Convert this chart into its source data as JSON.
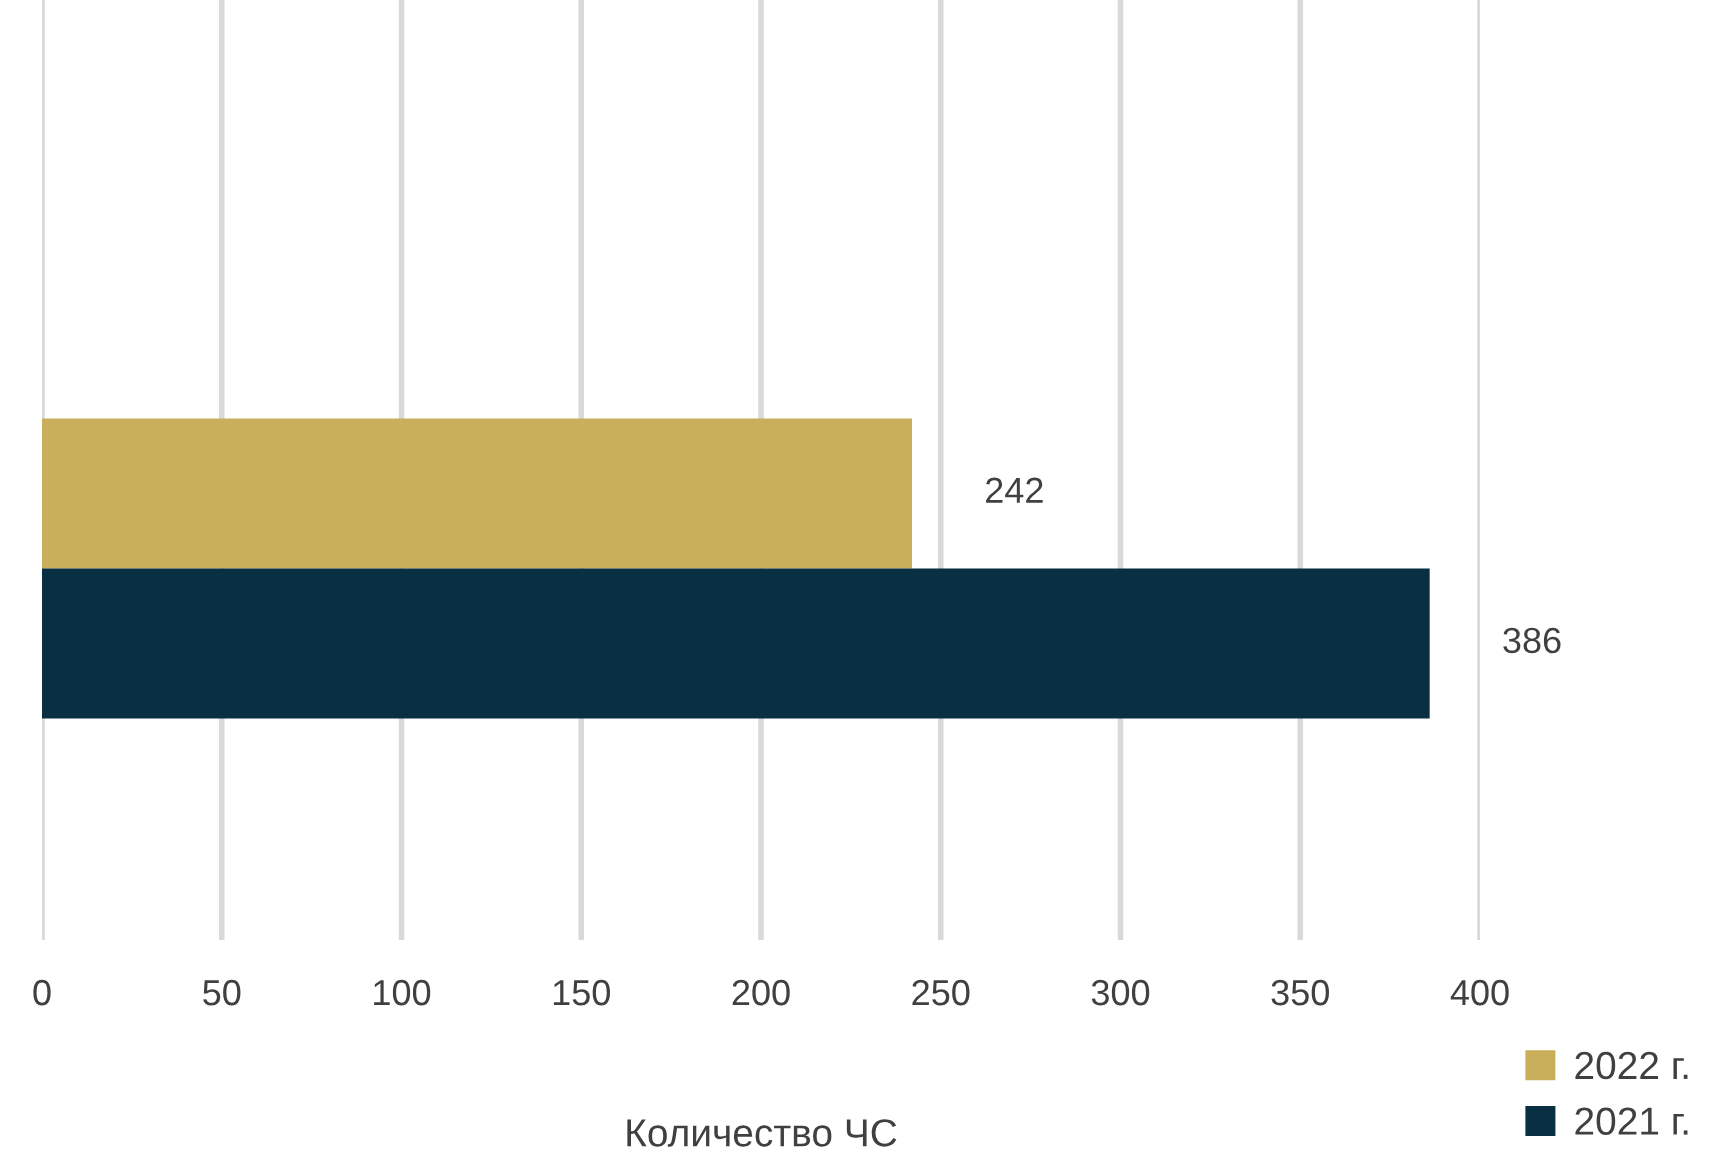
{
  "chart_data": {
    "type": "bar",
    "orientation": "horizontal",
    "categories": [
      null
    ],
    "series": [
      {
        "name": "2022 г.",
        "color": "#c9ae5c",
        "values": [
          242
        ]
      },
      {
        "name": "2021 г.",
        "color": "#082f42",
        "values": [
          386
        ]
      }
    ],
    "xlabel": "Количество ЧС",
    "xlim": [
      0,
      400
    ],
    "xticks": [
      0,
      50,
      100,
      150,
      200,
      250,
      300,
      350,
      400
    ],
    "grid": "x",
    "legend": "bottom right",
    "data_labels": true
  }
}
